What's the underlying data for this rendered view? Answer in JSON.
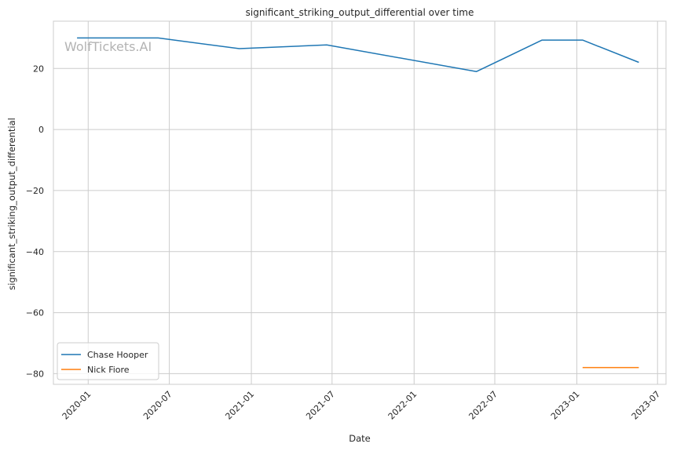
{
  "chart_data": {
    "type": "line",
    "title": "significant_striking_output_differential over time",
    "xlabel": "Date",
    "ylabel": "significant_striking_output_differential",
    "watermark": "WolfTickets.AI",
    "x_type": "date",
    "xlim": [
      "2019-10-15",
      "2023-07-20"
    ],
    "ylim": [
      -83.5,
      35.5
    ],
    "x_ticks": [
      {
        "date": "2020-01-01",
        "label": "2020-01"
      },
      {
        "date": "2020-07-01",
        "label": "2020-07"
      },
      {
        "date": "2021-01-01",
        "label": "2021-01"
      },
      {
        "date": "2021-07-01",
        "label": "2021-07"
      },
      {
        "date": "2022-01-01",
        "label": "2022-01"
      },
      {
        "date": "2022-07-01",
        "label": "2022-07"
      },
      {
        "date": "2023-01-01",
        "label": "2023-01"
      },
      {
        "date": "2023-07-01",
        "label": "2023-07"
      }
    ],
    "y_ticks": [
      {
        "value": 20,
        "label": "20"
      },
      {
        "value": 0,
        "label": "0"
      },
      {
        "value": -20,
        "label": "−20"
      },
      {
        "value": -40,
        "label": "−40"
      },
      {
        "value": -60,
        "label": "−60"
      },
      {
        "value": -80,
        "label": "−80"
      }
    ],
    "grid": true,
    "legend_position": "lower-left",
    "series": [
      {
        "name": "Chase Hooper",
        "color": "#1f77b4",
        "points": [
          {
            "x": "2019-12-07",
            "y": 30.0
          },
          {
            "x": "2020-06-06",
            "y": 30.0
          },
          {
            "x": "2020-12-05",
            "y": 26.5
          },
          {
            "x": "2021-06-19",
            "y": 27.7
          },
          {
            "x": "2022-05-21",
            "y": 19.0
          },
          {
            "x": "2022-10-15",
            "y": 29.3
          },
          {
            "x": "2023-01-14",
            "y": 29.3
          },
          {
            "x": "2023-05-20",
            "y": 22.0
          }
        ]
      },
      {
        "name": "Nick Fiore",
        "color": "#ff7f0e",
        "points": [
          {
            "x": "2023-01-14",
            "y": -78.0
          },
          {
            "x": "2023-05-20",
            "y": -78.0
          }
        ]
      }
    ]
  }
}
